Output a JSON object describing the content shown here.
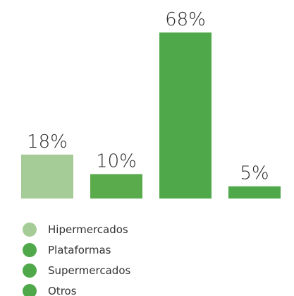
{
  "chart_data": {
    "type": "bar",
    "categories": [
      "Hipermercados",
      "Plataformas",
      "Supermercados",
      "Otros"
    ],
    "values": [
      18,
      10,
      68,
      5
    ],
    "value_labels": [
      "18%",
      "10%",
      "68%",
      "5%"
    ],
    "colors": [
      "#a5cc97",
      "#5aab4c",
      "#4fa84a",
      "#4fa84a"
    ],
    "legend_colors": [
      "#a5cc97",
      "#4fa84a",
      "#4fa84a",
      "#4fa84a"
    ],
    "ylim": [
      0,
      68
    ],
    "grid": false,
    "legend_position": "bottom-left"
  }
}
